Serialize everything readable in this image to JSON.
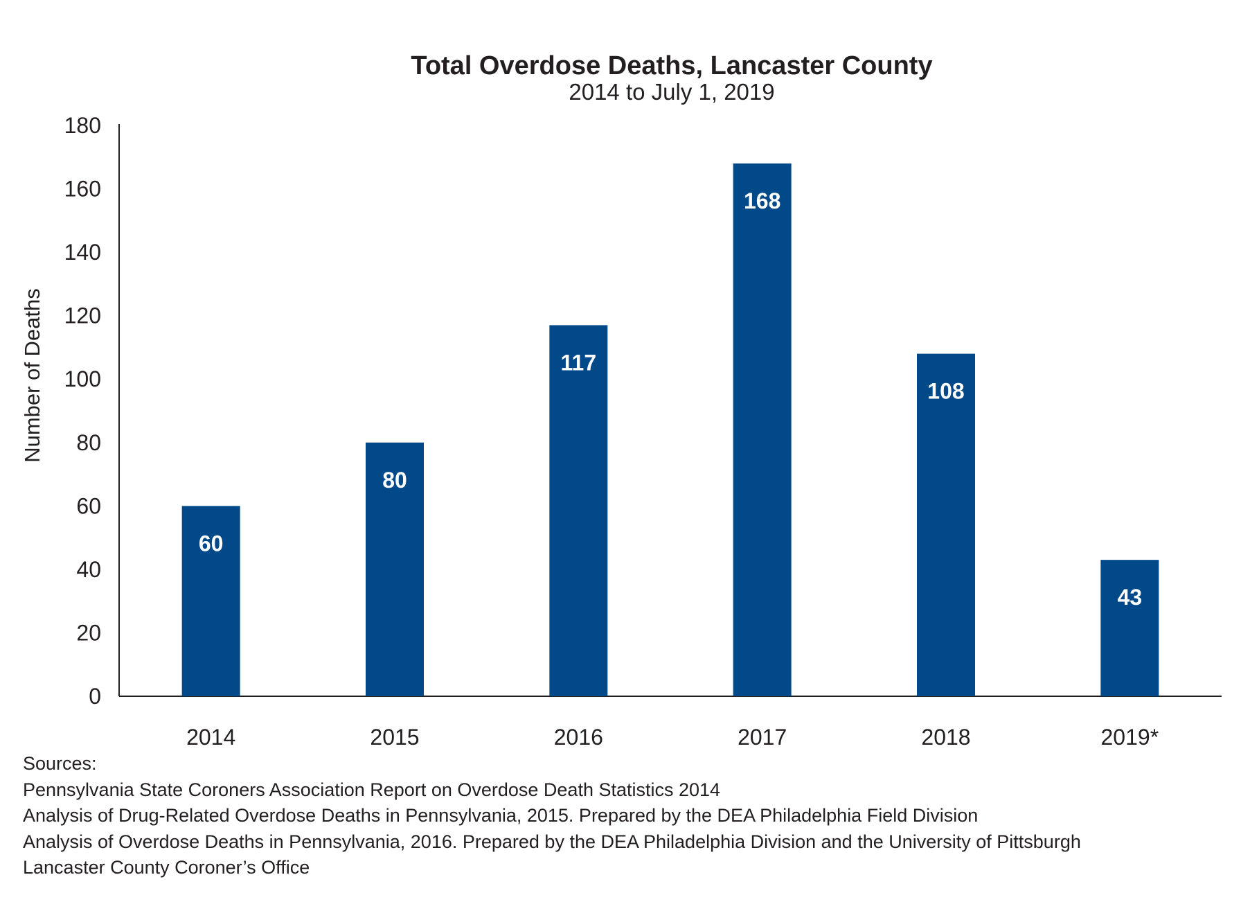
{
  "chart_data": {
    "type": "bar",
    "title": "Total Overdose Deaths, Lancaster County",
    "subtitle": "2014 to July 1, 2019",
    "xlabel": "",
    "ylabel": "Number of Deaths",
    "categories": [
      "2014",
      "2015",
      "2016",
      "2017",
      "2018",
      "2019*"
    ],
    "values": [
      60,
      80,
      117,
      168,
      108,
      43
    ],
    "data_labels": [
      "60",
      "80",
      "117",
      "168",
      "108",
      "43"
    ],
    "ylim": [
      0,
      180
    ],
    "yticks": [
      0,
      20,
      40,
      60,
      80,
      100,
      120,
      140,
      160,
      180
    ],
    "grid": false,
    "legend": "none",
    "bar_color": "#02498a",
    "label_color": "#ffffff"
  },
  "sources": {
    "heading": "Sources:",
    "items": [
      "Pennsylvania State Coroners Association Report on Overdose Death Statistics 2014",
      "Analysis of Drug-Related Overdose Deaths in Pennsylvania, 2015. Prepared by the DEA Philadelphia Field Division",
      "Analysis of Overdose Deaths in Pennsylvania, 2016. Prepared by the DEA Philadelphia Division and the University of Pittsburgh",
      "Lancaster County Coroner’s Office"
    ]
  }
}
